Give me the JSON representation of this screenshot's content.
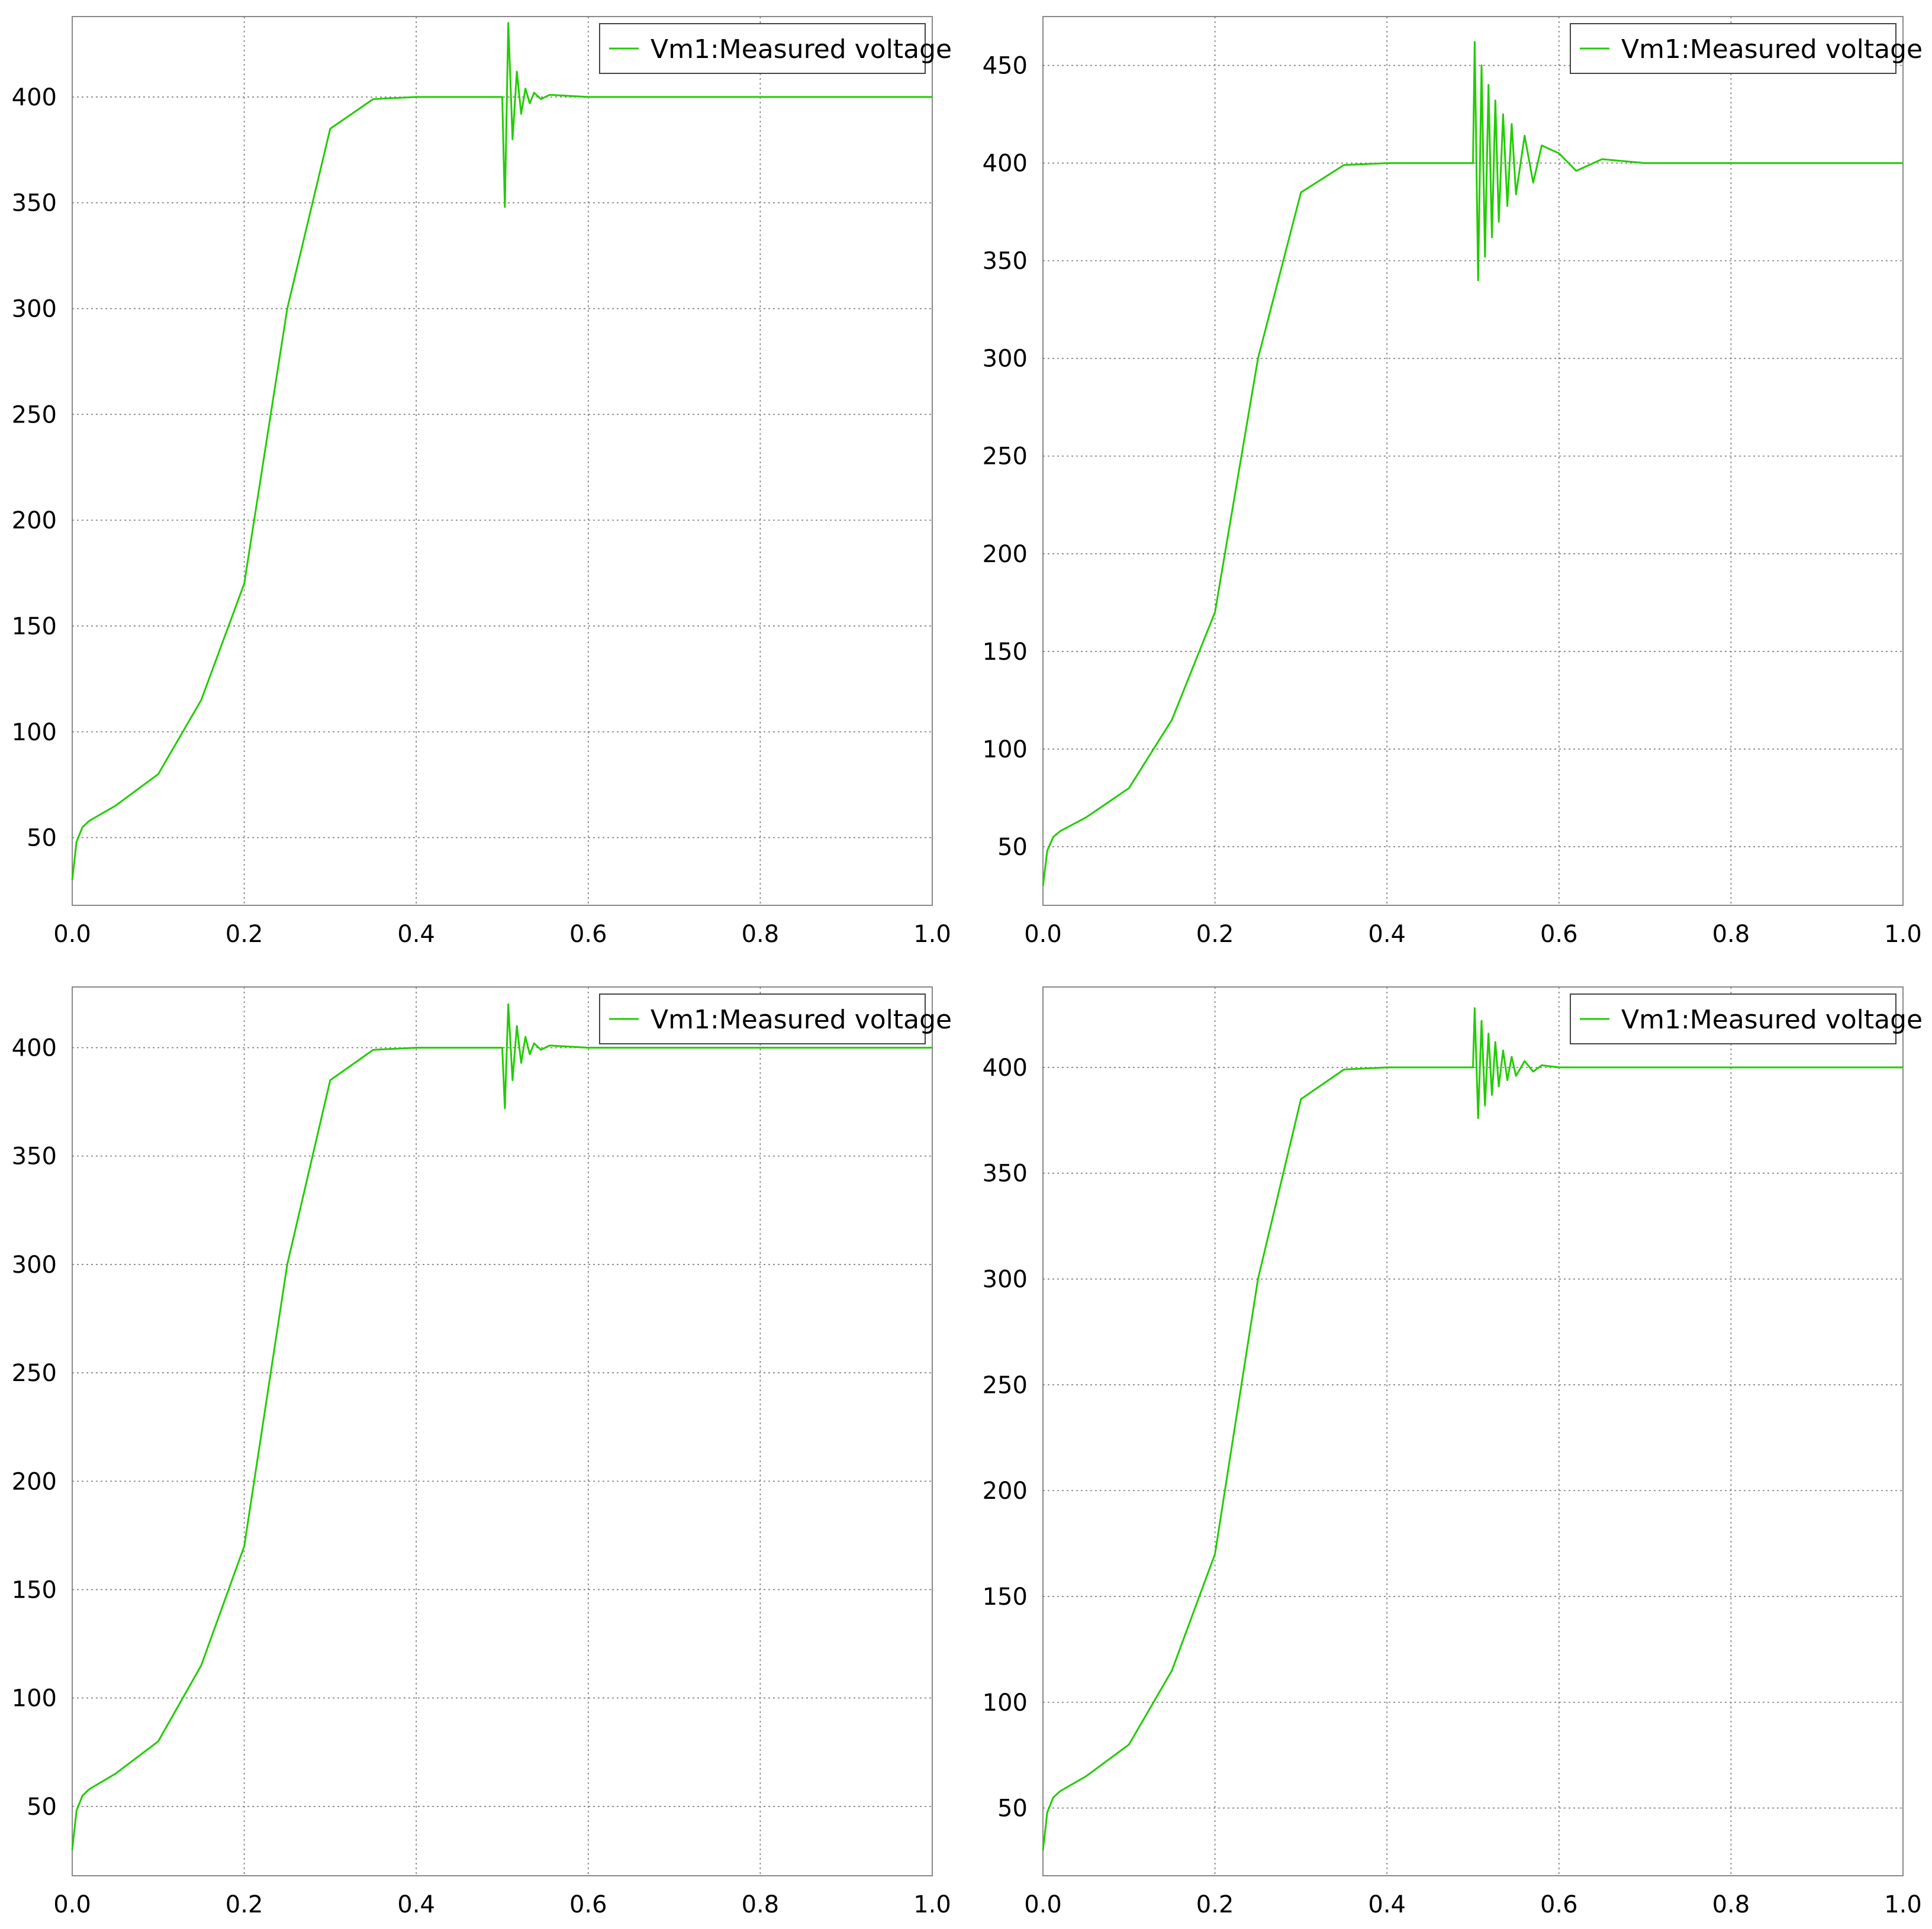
{
  "colors": {
    "series": "#22cc00",
    "grid": "#7a7a7a",
    "axis": "#888888",
    "background": "#ffffff"
  },
  "chart_data": [
    {
      "type": "line",
      "title": "",
      "xlabel": "",
      "ylabel": "",
      "xlim": [
        0,
        1
      ],
      "ylim": [
        18,
        438
      ],
      "xticks": [
        "0.0",
        "0.2",
        "0.4",
        "0.6",
        "0.8",
        "1.0"
      ],
      "yticks": [
        "50",
        "100",
        "150",
        "200",
        "250",
        "300",
        "350",
        "400"
      ],
      "grid": true,
      "legend": "top-right",
      "series": [
        {
          "name": "Vm1:Measured voltage",
          "x": [
            0,
            0.005,
            0.012,
            0.02,
            0.05,
            0.1,
            0.15,
            0.2,
            0.25,
            0.3,
            0.35,
            0.4,
            0.5,
            0.503,
            0.507,
            0.512,
            0.517,
            0.522,
            0.527,
            0.532,
            0.537,
            0.545,
            0.555,
            0.6,
            1.0
          ],
          "values": [
            30,
            48,
            55,
            58,
            65,
            80,
            115,
            170,
            300,
            385,
            399,
            400,
            400,
            348,
            435,
            380,
            412,
            392,
            404,
            397,
            402,
            399,
            401,
            400,
            400
          ]
        }
      ]
    },
    {
      "type": "line",
      "title": "",
      "xlabel": "",
      "ylabel": "",
      "xlim": [
        0,
        1
      ],
      "ylim": [
        20,
        475
      ],
      "xticks": [
        "0.0",
        "0.2",
        "0.4",
        "0.6",
        "0.8",
        "1.0"
      ],
      "yticks": [
        "50",
        "100",
        "150",
        "200",
        "250",
        "300",
        "350",
        "400",
        "450"
      ],
      "grid": true,
      "legend": "top-right",
      "series": [
        {
          "name": "Vm1:Measured voltage",
          "x": [
            0,
            0.005,
            0.012,
            0.02,
            0.05,
            0.1,
            0.15,
            0.2,
            0.25,
            0.3,
            0.35,
            0.4,
            0.5,
            0.502,
            0.506,
            0.51,
            0.514,
            0.518,
            0.522,
            0.526,
            0.53,
            0.535,
            0.54,
            0.545,
            0.55,
            0.56,
            0.57,
            0.58,
            0.6,
            0.62,
            0.65,
            0.7,
            1.0
          ],
          "values": [
            30,
            48,
            55,
            58,
            65,
            80,
            115,
            170,
            300,
            385,
            399,
            400,
            400,
            462,
            340,
            450,
            352,
            440,
            362,
            432,
            370,
            425,
            378,
            420,
            384,
            414,
            390,
            409,
            405,
            396,
            402,
            400,
            400
          ]
        }
      ]
    },
    {
      "type": "line",
      "title": "",
      "xlabel": "",
      "ylabel": "",
      "xlim": [
        0,
        1
      ],
      "ylim": [
        18,
        428
      ],
      "xticks": [
        "0.0",
        "0.2",
        "0.4",
        "0.6",
        "0.8",
        "1.0"
      ],
      "yticks": [
        "50",
        "100",
        "150",
        "200",
        "250",
        "300",
        "350",
        "400"
      ],
      "grid": true,
      "legend": "top-right",
      "series": [
        {
          "name": "Vm1:Measured voltage",
          "x": [
            0,
            0.005,
            0.012,
            0.02,
            0.05,
            0.1,
            0.15,
            0.2,
            0.25,
            0.3,
            0.35,
            0.4,
            0.5,
            0.503,
            0.507,
            0.512,
            0.517,
            0.522,
            0.527,
            0.532,
            0.537,
            0.545,
            0.555,
            0.6,
            1.0
          ],
          "values": [
            30,
            48,
            55,
            58,
            65,
            80,
            115,
            170,
            300,
            385,
            399,
            400,
            400,
            372,
            420,
            385,
            410,
            393,
            405,
            397,
            402,
            399,
            401,
            400,
            400
          ]
        }
      ]
    },
    {
      "type": "line",
      "title": "",
      "xlabel": "",
      "ylabel": "",
      "xlim": [
        0,
        1
      ],
      "ylim": [
        18,
        438
      ],
      "xticks": [
        "0.0",
        "0.2",
        "0.4",
        "0.6",
        "0.8",
        "1.0"
      ],
      "yticks": [
        "50",
        "100",
        "150",
        "200",
        "250",
        "300",
        "350",
        "400"
      ],
      "grid": true,
      "legend": "top-right",
      "series": [
        {
          "name": "Vm1:Measured voltage",
          "x": [
            0,
            0.005,
            0.012,
            0.02,
            0.05,
            0.1,
            0.15,
            0.2,
            0.25,
            0.3,
            0.35,
            0.4,
            0.5,
            0.502,
            0.506,
            0.51,
            0.514,
            0.518,
            0.522,
            0.526,
            0.53,
            0.535,
            0.54,
            0.545,
            0.55,
            0.56,
            0.57,
            0.58,
            0.6,
            1.0
          ],
          "values": [
            30,
            48,
            55,
            58,
            65,
            80,
            115,
            170,
            300,
            385,
            399,
            400,
            400,
            428,
            376,
            422,
            382,
            416,
            387,
            412,
            391,
            408,
            394,
            405,
            396,
            403,
            398,
            401,
            400,
            400
          ]
        }
      ]
    }
  ]
}
